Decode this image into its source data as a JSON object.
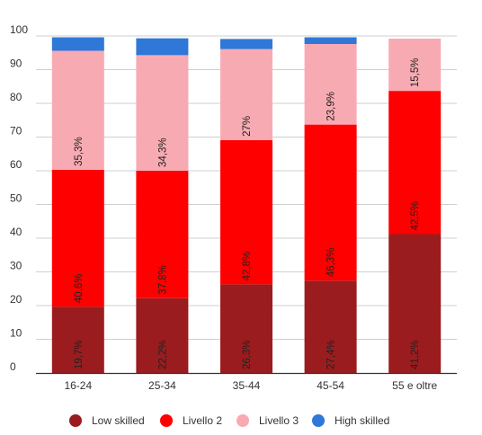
{
  "chart_data": {
    "type": "bar",
    "stacked": true,
    "categories": [
      "16-24",
      "25-34",
      "35-44",
      "45-54",
      "55 e oltre"
    ],
    "series": [
      {
        "name": "Low skilled",
        "color": "#9b1c1f",
        "values": [
          19.7,
          22.2,
          26.3,
          27.4,
          41.2
        ],
        "labels": [
          "19,7%",
          "22,2%",
          "26,3%",
          "27,4%",
          "41,2%"
        ]
      },
      {
        "name": "Livello 2",
        "color": "#ff0000",
        "values": [
          40.6,
          37.8,
          42.8,
          46.3,
          42.5
        ],
        "labels": [
          "40,6%",
          "37,8%",
          "42,8%",
          "46,3%",
          "42,5%"
        ]
      },
      {
        "name": "Livello 3",
        "color": "#f8aab3",
        "values": [
          35.3,
          34.3,
          27,
          23.9,
          15.5
        ],
        "labels": [
          "35,3%",
          "34,3%",
          "27%",
          "23,9%",
          "15,5%"
        ]
      },
      {
        "name": "High skilled",
        "color": "#2f78d8",
        "values": [
          4,
          5,
          3,
          2,
          0
        ],
        "labels": [
          "",
          "",
          "",
          "",
          ""
        ]
      }
    ],
    "yticks": [
      "0",
      "10",
      "20",
      "30",
      "40",
      "50",
      "60",
      "70",
      "80",
      "90",
      "100"
    ],
    "ylim": [
      0,
      100
    ],
    "grid": true,
    "legend_position": "bottom",
    "title": "",
    "xlabel": "",
    "ylabel": ""
  }
}
